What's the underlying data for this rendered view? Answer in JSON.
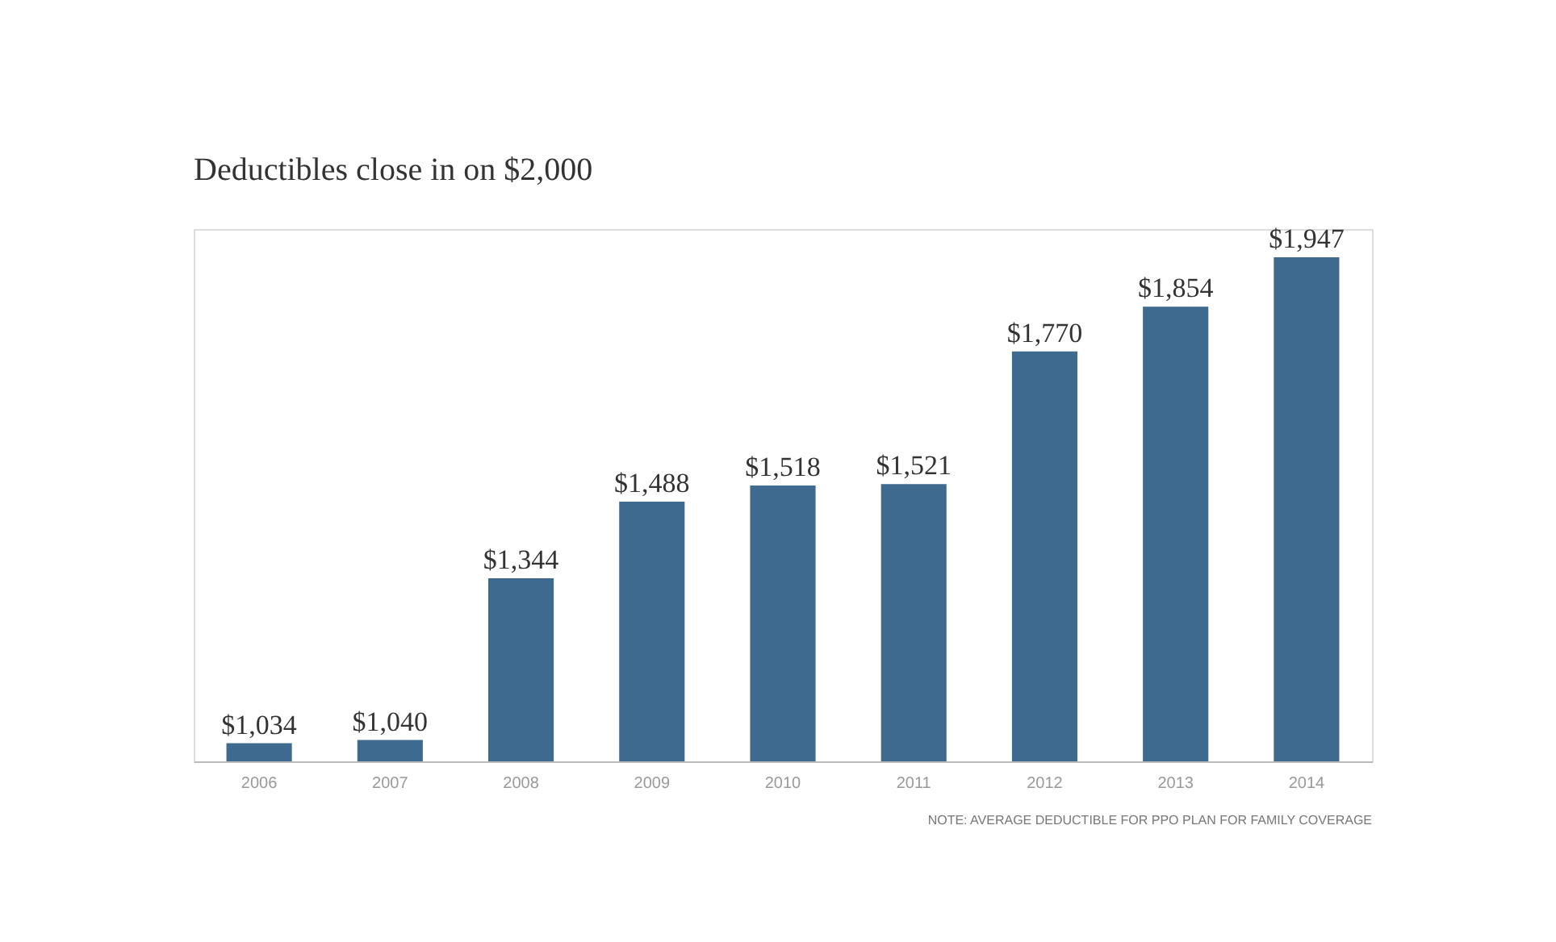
{
  "chart_data": {
    "type": "bar",
    "title": "Deductibles close in on $2,000",
    "categories": [
      "2006",
      "2007",
      "2008",
      "2009",
      "2010",
      "2011",
      "2012",
      "2013",
      "2014"
    ],
    "values": [
      1034,
      1040,
      1344,
      1488,
      1518,
      1521,
      1770,
      1854,
      1947
    ],
    "value_labels": [
      "$1,034",
      "$1,040",
      "$1,344",
      "$1,488",
      "$1,518",
      "$1,521",
      "$1,770",
      "$1,854",
      "$1,947"
    ],
    "color": "#3d6a8e",
    "ylim": [
      1000,
      2000
    ],
    "tick_labels": "x",
    "annotations": [
      "NOTE: AVERAGE DEDUCTIBLE FOR PPO PLAN FOR FAMILY COVERAGE"
    ]
  }
}
